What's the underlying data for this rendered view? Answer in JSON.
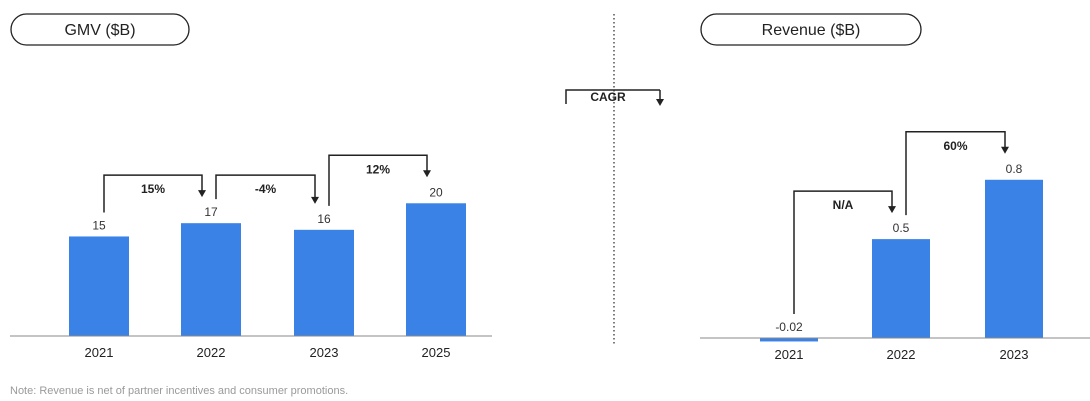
{
  "chart_data": [
    {
      "type": "bar",
      "title": "GMV ($B)",
      "categories": [
        "2021",
        "2022",
        "2023",
        "2025"
      ],
      "values": [
        15,
        17,
        16,
        20
      ],
      "value_labels": [
        "15",
        "17",
        "16",
        "20"
      ],
      "cagr": [
        {
          "from": 0,
          "to": 1,
          "label": "15%"
        },
        {
          "from": 1,
          "to": 2,
          "label": "-4%"
        },
        {
          "from": 2,
          "to": 3,
          "label": "12%"
        }
      ],
      "color": "#3b82e6",
      "ylim": [
        0,
        22
      ]
    },
    {
      "type": "bar",
      "title": "Revenue ($B)",
      "categories": [
        "2021",
        "2022",
        "2023"
      ],
      "values": [
        -0.02,
        0.5,
        0.8
      ],
      "value_labels": [
        "-0.02",
        "0.5",
        "0.8"
      ],
      "cagr": [
        {
          "from": 0,
          "to": 1,
          "label": "N/A"
        },
        {
          "from": 1,
          "to": 2,
          "label": "60%"
        }
      ],
      "color": "#3b82e6",
      "ylim": [
        0,
        0.9
      ]
    }
  ],
  "legend": {
    "label": "CAGR"
  },
  "note": "Note: Revenue is net of partner incentives and consumer promotions."
}
